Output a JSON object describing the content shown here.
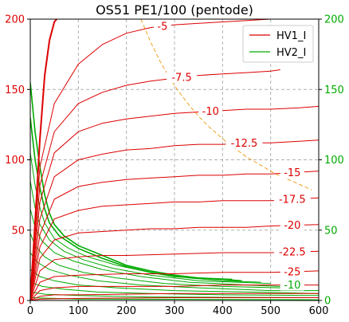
{
  "chart_data": {
    "type": "line",
    "title": "OS51  PE1/100 (pentode)",
    "xlim": [
      0,
      600
    ],
    "ylim_left": [
      0,
      200
    ],
    "ylim_right": [
      0,
      200
    ],
    "x_ticks": [
      "0",
      "100",
      "200",
      "300",
      "400",
      "500",
      "600"
    ],
    "y_ticks_left": [
      "0",
      "50",
      "100",
      "150",
      "200"
    ],
    "y_ticks_right": [
      "0",
      "50",
      "100",
      "150",
      "200"
    ],
    "grid": true,
    "legend": {
      "placement": "top-right",
      "entries": [
        {
          "name": "HV1_I",
          "color": "#dd0000"
        },
        {
          "name": "HV2_I",
          "color": "#00aa00"
        }
      ]
    },
    "colors": {
      "hv1": "#dd0000",
      "hv2": "#00aa00",
      "limit": "#f0a020"
    },
    "anode_curves": [
      {
        "label": "-5",
        "points": [
          [
            0,
            0
          ],
          [
            20,
            95
          ],
          [
            50,
            140
          ],
          [
            100,
            168
          ],
          [
            150,
            182
          ],
          [
            200,
            190
          ],
          [
            250,
            194
          ],
          [
            300,
            196
          ],
          [
            350,
            197
          ],
          [
            400,
            198
          ],
          [
            450,
            199
          ],
          [
            500,
            200
          ]
        ]
      },
      {
        "label": "-7.5",
        "points": [
          [
            0,
            0
          ],
          [
            20,
            82
          ],
          [
            50,
            120
          ],
          [
            100,
            140
          ],
          [
            150,
            148
          ],
          [
            200,
            153
          ],
          [
            250,
            156
          ],
          [
            300,
            158
          ],
          [
            350,
            160
          ],
          [
            400,
            161
          ],
          [
            450,
            162
          ],
          [
            500,
            163
          ],
          [
            520,
            164
          ]
        ]
      },
      {
        "label": "-10",
        "points": [
          [
            0,
            0
          ],
          [
            20,
            70
          ],
          [
            50,
            105
          ],
          [
            100,
            120
          ],
          [
            150,
            126
          ],
          [
            200,
            129
          ],
          [
            250,
            131
          ],
          [
            300,
            133
          ],
          [
            350,
            134
          ],
          [
            400,
            135
          ],
          [
            450,
            136
          ],
          [
            500,
            136
          ],
          [
            560,
            137
          ],
          [
            600,
            138
          ]
        ]
      },
      {
        "label": "-12.5",
        "points": [
          [
            0,
            0
          ],
          [
            20,
            58
          ],
          [
            50,
            88
          ],
          [
            100,
            100
          ],
          [
            150,
            104
          ],
          [
            200,
            107
          ],
          [
            250,
            108
          ],
          [
            300,
            110
          ],
          [
            350,
            111
          ],
          [
            400,
            111
          ],
          [
            450,
            112
          ],
          [
            500,
            112
          ],
          [
            600,
            114
          ]
        ]
      },
      {
        "label": "-15",
        "points": [
          [
            0,
            0
          ],
          [
            20,
            47
          ],
          [
            50,
            72
          ],
          [
            100,
            81
          ],
          [
            150,
            84
          ],
          [
            200,
            86
          ],
          [
            250,
            87
          ],
          [
            300,
            88
          ],
          [
            350,
            89
          ],
          [
            400,
            89
          ],
          [
            450,
            90
          ],
          [
            500,
            90
          ],
          [
            600,
            92
          ]
        ]
      },
      {
        "label": "-17.5",
        "points": [
          [
            0,
            0
          ],
          [
            20,
            38
          ],
          [
            50,
            58
          ],
          [
            100,
            64
          ],
          [
            150,
            67
          ],
          [
            200,
            68
          ],
          [
            250,
            69
          ],
          [
            300,
            70
          ],
          [
            350,
            70
          ],
          [
            400,
            71
          ],
          [
            450,
            71
          ],
          [
            500,
            71
          ],
          [
            600,
            73
          ]
        ]
      },
      {
        "label": "-20",
        "points": [
          [
            0,
            0
          ],
          [
            20,
            30
          ],
          [
            50,
            43
          ],
          [
            100,
            48
          ],
          [
            150,
            49
          ],
          [
            200,
            50
          ],
          [
            250,
            51
          ],
          [
            300,
            51
          ],
          [
            350,
            52
          ],
          [
            400,
            52
          ],
          [
            450,
            52
          ],
          [
            500,
            53
          ],
          [
            600,
            54
          ]
        ]
      },
      {
        "label": "-22.5",
        "points": [
          [
            0,
            0
          ],
          [
            20,
            21
          ],
          [
            50,
            29
          ],
          [
            100,
            31
          ],
          [
            150,
            32
          ],
          [
            200,
            32
          ],
          [
            300,
            33
          ],
          [
            400,
            34
          ],
          [
            500,
            34
          ],
          [
            600,
            35
          ]
        ]
      },
      {
        "label": "-25",
        "points": [
          [
            0,
            0
          ],
          [
            20,
            13
          ],
          [
            50,
            17
          ],
          [
            100,
            18
          ],
          [
            200,
            19
          ],
          [
            300,
            19
          ],
          [
            400,
            20
          ],
          [
            500,
            20
          ],
          [
            600,
            21
          ]
        ]
      },
      {
        "label": "",
        "points": [
          [
            0,
            0
          ],
          [
            20,
            7
          ],
          [
            50,
            9
          ],
          [
            100,
            10
          ],
          [
            200,
            10
          ],
          [
            300,
            10
          ],
          [
            400,
            11
          ],
          [
            500,
            11
          ],
          [
            600,
            11
          ]
        ]
      },
      {
        "label": "",
        "points": [
          [
            0,
            0
          ],
          [
            20,
            3
          ],
          [
            50,
            4
          ],
          [
            100,
            4
          ],
          [
            300,
            5
          ],
          [
            500,
            5
          ],
          [
            600,
            5
          ]
        ]
      },
      {
        "label": "",
        "points": [
          [
            0,
            0
          ],
          [
            20,
            1
          ],
          [
            100,
            1.5
          ],
          [
            300,
            2
          ],
          [
            600,
            2
          ]
        ]
      }
    ],
    "steep_curve": {
      "points": [
        [
          0,
          0
        ],
        [
          10,
          55
        ],
        [
          20,
          115
        ],
        [
          30,
          160
        ],
        [
          40,
          185
        ],
        [
          50,
          198
        ],
        [
          55,
          200
        ]
      ]
    },
    "screen_curves": [
      {
        "points": [
          [
            0,
            155
          ],
          [
            10,
            120
          ],
          [
            20,
            95
          ],
          [
            30,
            75
          ],
          [
            40,
            62
          ],
          [
            50,
            54
          ],
          [
            70,
            46
          ],
          [
            100,
            39
          ],
          [
            150,
            32
          ],
          [
            200,
            25
          ],
          [
            250,
            21
          ],
          [
            300,
            18
          ],
          [
            350,
            16
          ],
          [
            420,
            15
          ]
        ]
      },
      {
        "points": [
          [
            0,
            130
          ],
          [
            10,
            100
          ],
          [
            20,
            80
          ],
          [
            30,
            65
          ],
          [
            40,
            55
          ],
          [
            60,
            46
          ],
          [
            100,
            37
          ],
          [
            150,
            30
          ],
          [
            200,
            24
          ],
          [
            250,
            20
          ],
          [
            300,
            17
          ],
          [
            350,
            16
          ],
          [
            400,
            15
          ],
          [
            440,
            14
          ]
        ]
      },
      {
        "points": [
          [
            0,
            105
          ],
          [
            10,
            82
          ],
          [
            20,
            66
          ],
          [
            30,
            55
          ],
          [
            50,
            44
          ],
          [
            80,
            37
          ],
          [
            120,
            31
          ],
          [
            180,
            25
          ],
          [
            250,
            20
          ],
          [
            330,
            16
          ],
          [
            400,
            14
          ],
          [
            480,
            13
          ]
        ]
      },
      {
        "points": [
          [
            0,
            85
          ],
          [
            10,
            66
          ],
          [
            20,
            54
          ],
          [
            40,
            43
          ],
          [
            70,
            35
          ],
          [
            110,
            29
          ],
          [
            170,
            23
          ],
          [
            250,
            18
          ],
          [
            350,
            14
          ],
          [
            500,
            12
          ]
        ]
      },
      {
        "points": [
          [
            0,
            65
          ],
          [
            10,
            52
          ],
          [
            25,
            42
          ],
          [
            50,
            34
          ],
          [
            90,
            28
          ],
          [
            150,
            22
          ],
          [
            230,
            17
          ],
          [
            330,
            13
          ],
          [
            450,
            11
          ],
          [
            520,
            10
          ]
        ]
      },
      {
        "points": [
          [
            0,
            48
          ],
          [
            10,
            39
          ],
          [
            30,
            31
          ],
          [
            60,
            25
          ],
          [
            110,
            20
          ],
          [
            180,
            16
          ],
          [
            280,
            12
          ],
          [
            400,
            10
          ],
          [
            520,
            9
          ]
        ]
      },
      {
        "points": [
          [
            0,
            34
          ],
          [
            15,
            27
          ],
          [
            40,
            22
          ],
          [
            80,
            18
          ],
          [
            140,
            14
          ],
          [
            230,
            11
          ],
          [
            350,
            9
          ],
          [
            500,
            7
          ],
          [
            600,
            7
          ]
        ]
      },
      {
        "points": [
          [
            0,
            22
          ],
          [
            20,
            17
          ],
          [
            50,
            14
          ],
          [
            100,
            11
          ],
          [
            180,
            9
          ],
          [
            300,
            7
          ],
          [
            450,
            6
          ],
          [
            600,
            5
          ]
        ]
      },
      {
        "points": [
          [
            0,
            13
          ],
          [
            25,
            10
          ],
          [
            70,
            8
          ],
          [
            140,
            6
          ],
          [
            250,
            5
          ],
          [
            400,
            4
          ],
          [
            600,
            3.5
          ]
        ]
      },
      {
        "points": [
          [
            0,
            6
          ],
          [
            30,
            4.5
          ],
          [
            100,
            3.5
          ],
          [
            250,
            2.5
          ],
          [
            600,
            2
          ]
        ]
      },
      {
        "points": [
          [
            0,
            2
          ],
          [
            100,
            1
          ],
          [
            600,
            0.5
          ]
        ]
      }
    ],
    "screen_label": {
      "text": "-10",
      "x": 545,
      "y": 11
    },
    "max_dissipation": {
      "points": [
        [
          230,
          200
        ],
        [
          250,
          184
        ],
        [
          270,
          170
        ],
        [
          290,
          158
        ],
        [
          310,
          148
        ],
        [
          330,
          139
        ],
        [
          350,
          131
        ],
        [
          370,
          124
        ],
        [
          390,
          118
        ],
        [
          410,
          112
        ],
        [
          430,
          107
        ],
        [
          450,
          102
        ],
        [
          470,
          98
        ],
        [
          490,
          94
        ],
        [
          510,
          90
        ],
        [
          530,
          87
        ],
        [
          550,
          84
        ],
        [
          570,
          81
        ],
        [
          585,
          78.5
        ]
      ]
    }
  }
}
